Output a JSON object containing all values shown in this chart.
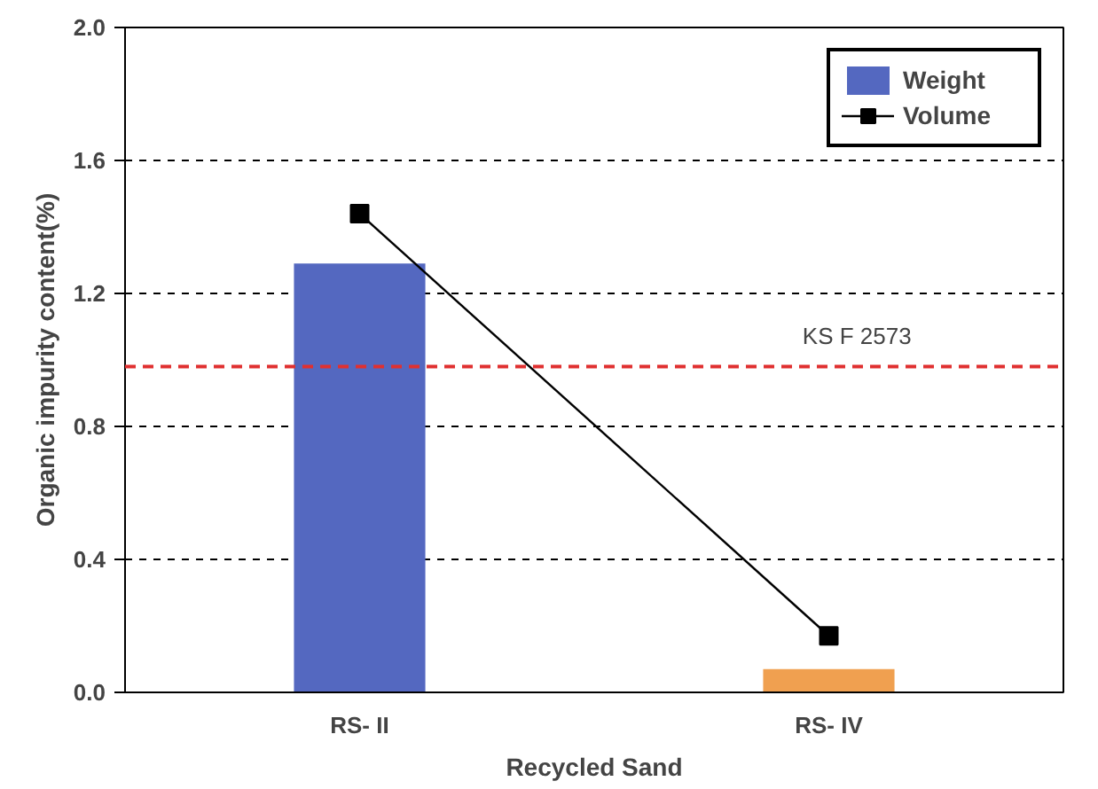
{
  "chart_data": {
    "type": "bar",
    "xlabel": "Recycled Sand",
    "ylabel": "Organic impurity content(%)",
    "categories": [
      "RS- II",
      "RS- IV"
    ],
    "series": [
      {
        "name": "Weight",
        "color": "#5468c0",
        "colors": [
          "#5468c0",
          "#f0a050"
        ],
        "values": [
          1.29,
          0.07
        ]
      },
      {
        "name": "Volume",
        "type": "line",
        "color": "#000000",
        "marker": "square",
        "values": [
          1.44,
          0.17
        ]
      }
    ],
    "ylim": [
      0,
      2.0
    ],
    "yticks": [
      {
        "value": 0,
        "label": "0.0"
      },
      {
        "value": 0.4,
        "label": "0.4"
      },
      {
        "value": 0.8,
        "label": "0.8"
      },
      {
        "value": 1.2,
        "label": "1.2"
      },
      {
        "value": 1.6,
        "label": "1.6"
      },
      {
        "value": 2.0,
        "label": "2.0"
      }
    ],
    "grid": "y",
    "legend": "top right",
    "ref_lines": [
      {
        "axis": "y",
        "value": 0.98,
        "label": "KS F 2573",
        "color": "#e03030",
        "line_style": "dashed"
      }
    ]
  }
}
